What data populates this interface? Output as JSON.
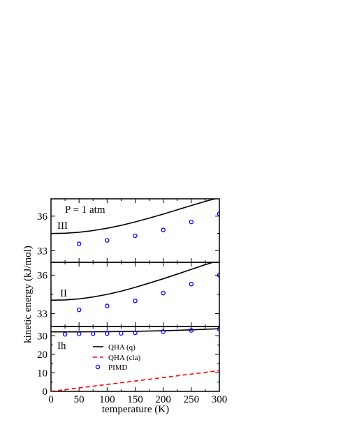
{
  "chart_data": {
    "type": "line",
    "xlabel": "temperature (K)",
    "ylabel": "kinetic energy (kJ/mol)",
    "xlim": [
      0,
      300
    ],
    "x_ticks": [
      0,
      50,
      100,
      150,
      200,
      250,
      300
    ],
    "annotation": "P = 1 atm",
    "legend": {
      "placement": "lower-center of bottom panel",
      "entries": [
        {
          "label": "QHA (q)",
          "style": "solid",
          "color": "#000000"
        },
        {
          "label": "QHA (cla)",
          "style": "dashed",
          "color": "#ff0000"
        },
        {
          "label": "PIMD",
          "style": "circle",
          "color": "#0000ff"
        }
      ]
    },
    "panels": [
      {
        "label": "III",
        "ylim": [
          32.0,
          37.5
        ],
        "y_ticks": [
          33,
          36
        ],
        "series": [
          {
            "name": "QHA (q)",
            "x": [
              0,
              25,
              50,
              75,
              100,
              125,
              150,
              175,
              200,
              225,
              250,
              275,
              300
            ],
            "y": [
              34.5,
              34.52,
              34.6,
              34.75,
              34.95,
              35.2,
              35.5,
              35.83,
              36.18,
              36.55,
              36.92,
              37.28,
              37.6
            ]
          },
          {
            "name": "PIMD",
            "x": [
              50,
              100,
              150,
              200,
              250,
              300
            ],
            "y": [
              33.6,
              33.9,
              34.3,
              34.8,
              35.5,
              36.2
            ]
          }
        ]
      },
      {
        "label": "II",
        "ylim": [
          32.0,
          37.0
        ],
        "y_ticks": [
          33,
          36
        ],
        "series": [
          {
            "name": "QHA (q)",
            "x": [
              0,
              25,
              50,
              75,
              100,
              125,
              150,
              175,
              200,
              225,
              250,
              275,
              300
            ],
            "y": [
              34.05,
              34.07,
              34.15,
              34.3,
              34.5,
              34.75,
              35.05,
              35.38,
              35.72,
              36.08,
              36.45,
              36.82,
              37.15
            ]
          },
          {
            "name": "PIMD",
            "x": [
              50,
              100,
              150,
              200,
              250,
              300
            ],
            "y": [
              33.3,
              33.6,
              34.0,
              34.6,
              35.3,
              36.0
            ]
          }
        ]
      },
      {
        "label": "Ih",
        "ylim": [
          0,
          35
        ],
        "y_ticks": [
          0,
          10,
          20,
          30
        ],
        "series": [
          {
            "name": "QHA (q)",
            "x": [
              0,
              50,
              100,
              150,
              200,
              250,
              300
            ],
            "y": [
              32.1,
              32.1,
              32.2,
              32.4,
              32.7,
              33.2,
              33.8
            ]
          },
          {
            "name": "QHA (cla)",
            "x": [
              0,
              300
            ],
            "y": [
              0,
              11.2
            ]
          },
          {
            "name": "PIMD",
            "x": [
              25,
              50,
              75,
              100,
              125,
              150,
              200,
              250,
              300
            ],
            "y": [
              30.8,
              31.0,
              31.1,
              31.2,
              31.3,
              31.6,
              32.2,
              32.9,
              33.6
            ]
          }
        ]
      }
    ]
  }
}
